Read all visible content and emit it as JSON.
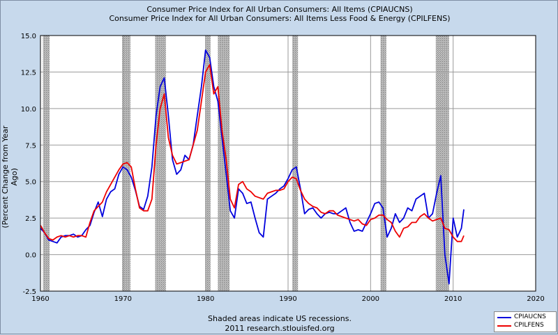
{
  "header": {
    "title1": "Consumer Price Index for All Urban Consumers: All Items (CPIAUCNS)",
    "title2": "Consumer Price Index for All Urban Consumers: All Items Less Food & Energy (CPILFENS)"
  },
  "footer": {
    "note": "Shaded areas indicate US recessions.",
    "source": "2011 research.stlouisfed.org"
  },
  "colors": {
    "background": "#c7d9ec",
    "plot_bg": "#ffffff",
    "recession": "#a9a9a9",
    "series1": "#0000dd",
    "series2": "#ee0000"
  },
  "chart_data": {
    "type": "line",
    "ylabel": "(Percent Change from Year Ago)",
    "xlim": [
      1960,
      2020
    ],
    "ylim": [
      -2.5,
      15.0
    ],
    "xticks": [
      "1960",
      "1970",
      "1980",
      "1990",
      "2000",
      "2010",
      "2020"
    ],
    "yticks": [
      "-2.5",
      "0.0",
      "2.5",
      "5.0",
      "7.5",
      "10.0",
      "12.5",
      "15.0"
    ],
    "grid": true,
    "legend_position": "bottom-right",
    "recessions": [
      [
        1960.3,
        1961.1
      ],
      [
        1969.9,
        1970.9
      ],
      [
        1973.9,
        1975.2
      ],
      [
        1980.0,
        1980.6
      ],
      [
        1981.5,
        1982.9
      ],
      [
        1990.5,
        1991.2
      ],
      [
        2001.2,
        2001.9
      ],
      [
        2007.9,
        2009.5
      ]
    ],
    "series": [
      {
        "name": "CPIAUCNS",
        "x": [
          1960.0,
          1960.5,
          1961.0,
          1961.5,
          1962.0,
          1962.5,
          1963.0,
          1963.5,
          1964.0,
          1964.5,
          1965.0,
          1965.5,
          1966.0,
          1966.5,
          1967.0,
          1967.5,
          1968.0,
          1968.5,
          1969.0,
          1969.5,
          1970.0,
          1970.5,
          1971.0,
          1971.5,
          1972.0,
          1972.5,
          1973.0,
          1973.5,
          1974.0,
          1974.5,
          1975.0,
          1975.5,
          1976.0,
          1976.5,
          1977.0,
          1977.5,
          1978.0,
          1978.5,
          1979.0,
          1979.5,
          1980.0,
          1980.5,
          1981.0,
          1981.5,
          1982.0,
          1982.5,
          1983.0,
          1983.5,
          1984.0,
          1984.5,
          1985.0,
          1985.5,
          1986.0,
          1986.5,
          1987.0,
          1987.5,
          1988.0,
          1988.5,
          1989.0,
          1989.5,
          1990.0,
          1990.5,
          1991.0,
          1991.5,
          1992.0,
          1992.5,
          1993.0,
          1993.5,
          1994.0,
          1994.5,
          1995.0,
          1995.5,
          1996.0,
          1996.5,
          1997.0,
          1997.5,
          1998.0,
          1998.5,
          1999.0,
          1999.5,
          2000.0,
          2000.5,
          2001.0,
          2001.5,
          2002.0,
          2002.5,
          2003.0,
          2003.5,
          2004.0,
          2004.5,
          2005.0,
          2005.5,
          2006.0,
          2006.5,
          2007.0,
          2007.5,
          2008.0,
          2008.5,
          2009.0,
          2009.5,
          2010.0,
          2010.5,
          2011.0,
          2011.3
        ],
        "y": [
          1.8,
          1.5,
          1.0,
          0.9,
          0.8,
          1.2,
          1.3,
          1.3,
          1.4,
          1.2,
          1.3,
          1.7,
          2.0,
          2.9,
          3.6,
          2.6,
          3.8,
          4.3,
          4.5,
          5.5,
          6.0,
          5.8,
          5.3,
          4.4,
          3.3,
          3.1,
          4.0,
          6.0,
          9.5,
          11.5,
          12.1,
          9.5,
          6.5,
          5.5,
          5.8,
          6.8,
          6.5,
          7.5,
          9.5,
          11.5,
          14.0,
          13.5,
          11.5,
          10.5,
          8.0,
          5.5,
          3.0,
          2.5,
          4.5,
          4.2,
          3.5,
          3.6,
          2.5,
          1.5,
          1.2,
          3.8,
          4.0,
          4.2,
          4.5,
          4.7,
          5.2,
          5.8,
          6.0,
          4.5,
          2.8,
          3.1,
          3.2,
          2.8,
          2.5,
          2.8,
          2.9,
          2.8,
          2.8,
          3.0,
          3.2,
          2.2,
          1.6,
          1.7,
          1.6,
          2.2,
          2.8,
          3.5,
          3.6,
          3.2,
          1.2,
          1.8,
          2.8,
          2.2,
          2.5,
          3.2,
          3.0,
          3.8,
          4.0,
          4.2,
          2.5,
          2.8,
          4.2,
          5.4,
          0.0,
          -2.0,
          2.5,
          1.2,
          1.8,
          3.1
        ]
      },
      {
        "name": "CPILFENS",
        "x": [
          1960.0,
          1960.5,
          1961.0,
          1961.5,
          1962.0,
          1962.5,
          1963.0,
          1963.5,
          1964.0,
          1964.5,
          1965.0,
          1965.5,
          1966.0,
          1966.5,
          1967.0,
          1967.5,
          1968.0,
          1968.5,
          1969.0,
          1969.5,
          1970.0,
          1970.5,
          1971.0,
          1971.5,
          1972.0,
          1972.5,
          1973.0,
          1973.5,
          1974.0,
          1974.5,
          1975.0,
          1975.5,
          1976.0,
          1976.5,
          1977.0,
          1977.5,
          1978.0,
          1978.5,
          1979.0,
          1979.5,
          1980.0,
          1980.5,
          1981.0,
          1981.5,
          1982.0,
          1982.5,
          1983.0,
          1983.5,
          1984.0,
          1984.5,
          1985.0,
          1985.5,
          1986.0,
          1986.5,
          1987.0,
          1987.5,
          1988.0,
          1988.5,
          1989.0,
          1989.5,
          1990.0,
          1990.5,
          1991.0,
          1991.5,
          1992.0,
          1992.5,
          1993.0,
          1993.5,
          1994.0,
          1994.5,
          1995.0,
          1995.5,
          1996.0,
          1996.5,
          1997.0,
          1997.5,
          1998.0,
          1998.5,
          1999.0,
          1999.5,
          2000.0,
          2000.5,
          2001.0,
          2001.5,
          2002.0,
          2002.5,
          2003.0,
          2003.5,
          2004.0,
          2004.5,
          2005.0,
          2005.5,
          2006.0,
          2006.5,
          2007.0,
          2007.5,
          2008.0,
          2008.5,
          2009.0,
          2009.5,
          2010.0,
          2010.5,
          2011.0,
          2011.3
        ],
        "y": [
          2.0,
          1.5,
          1.1,
          1.0,
          1.2,
          1.3,
          1.2,
          1.3,
          1.2,
          1.3,
          1.3,
          1.2,
          2.2,
          3.0,
          3.3,
          3.6,
          4.3,
          4.8,
          5.3,
          5.8,
          6.2,
          6.3,
          6.0,
          4.5,
          3.2,
          3.0,
          3.0,
          3.8,
          7.5,
          10.0,
          11.0,
          8.0,
          6.8,
          6.2,
          6.3,
          6.4,
          6.5,
          7.5,
          8.5,
          10.5,
          12.5,
          13.0,
          11.0,
          11.5,
          8.5,
          6.5,
          3.8,
          3.2,
          4.8,
          5.0,
          4.5,
          4.3,
          4.0,
          3.9,
          3.8,
          4.2,
          4.3,
          4.4,
          4.4,
          4.5,
          5.0,
          5.3,
          5.2,
          4.4,
          3.8,
          3.5,
          3.3,
          3.2,
          2.9,
          2.8,
          3.0,
          3.0,
          2.7,
          2.6,
          2.5,
          2.4,
          2.3,
          2.4,
          2.1,
          2.0,
          2.4,
          2.5,
          2.7,
          2.7,
          2.4,
          2.2,
          1.6,
          1.2,
          1.8,
          1.9,
          2.2,
          2.2,
          2.6,
          2.8,
          2.5,
          2.3,
          2.4,
          2.5,
          1.8,
          1.7,
          1.2,
          0.9,
          0.9,
          1.3
        ]
      }
    ]
  }
}
